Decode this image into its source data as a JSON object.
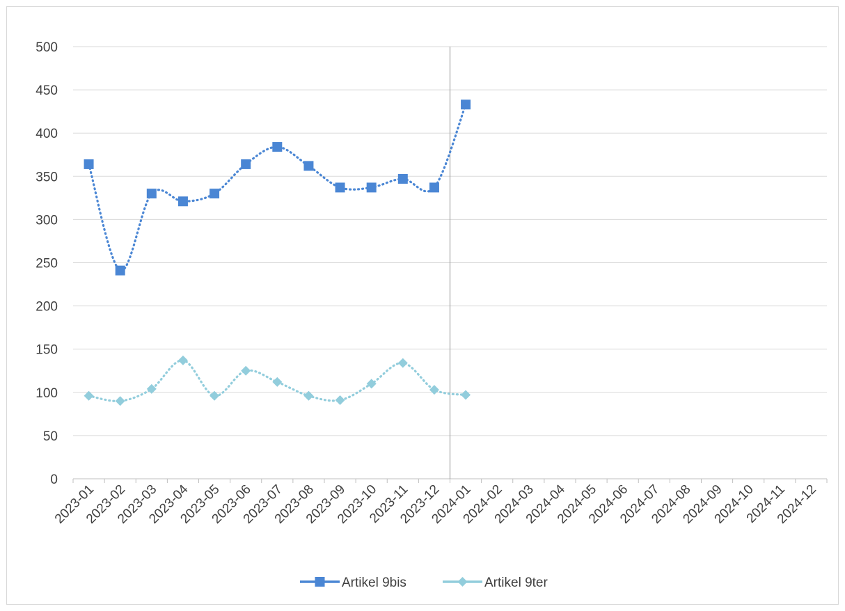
{
  "chart_data": {
    "type": "line",
    "title": "",
    "xlabel": "",
    "ylabel": "",
    "categories": [
      "2023-01",
      "2023-02",
      "2023-03",
      "2023-04",
      "2023-05",
      "2023-06",
      "2023-07",
      "2023-08",
      "2023-09",
      "2023-10",
      "2023-11",
      "2023-12",
      "2024-01",
      "2024-02",
      "2024-03",
      "2024-04",
      "2024-05",
      "2024-06",
      "2024-07",
      "2024-08",
      "2024-09",
      "2024-10",
      "2024-11",
      "2024-12"
    ],
    "ylim": [
      0,
      500
    ],
    "yticks": [
      0,
      50,
      100,
      150,
      200,
      250,
      300,
      350,
      400,
      450,
      500
    ],
    "grid": "horizontal",
    "reference_line_after": "2023-12",
    "legend_position": "bottom",
    "series": [
      {
        "name": "Artikel 9bis",
        "color": "#4a86d4",
        "marker": "square",
        "line_style": "dotted",
        "values": [
          364,
          241,
          330,
          321,
          330,
          364,
          384,
          362,
          337,
          337,
          347,
          337,
          433,
          null,
          null,
          null,
          null,
          null,
          null,
          null,
          null,
          null,
          null,
          null
        ]
      },
      {
        "name": "Artikel 9ter",
        "color": "#92cddc",
        "marker": "diamond",
        "line_style": "dotted",
        "values": [
          96,
          90,
          104,
          137,
          96,
          125,
          112,
          96,
          91,
          110,
          134,
          103,
          97,
          null,
          null,
          null,
          null,
          null,
          null,
          null,
          null,
          null,
          null,
          null
        ]
      }
    ]
  }
}
